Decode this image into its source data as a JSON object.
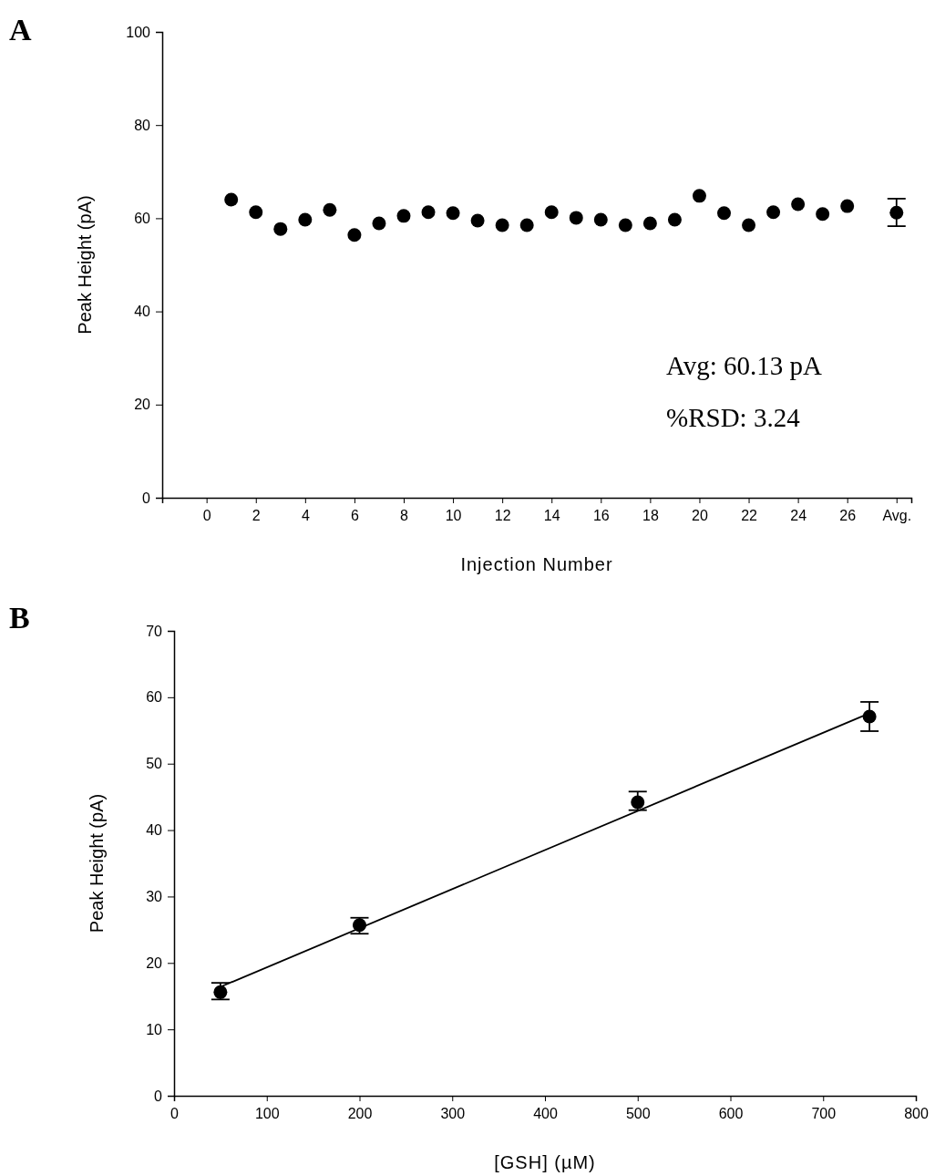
{
  "chart_data": [
    {
      "type": "scatter",
      "title": "A",
      "xlabel": "Injection Number",
      "ylabel": "Peak Height (pA)",
      "xlim": [
        -1.8,
        28.6
      ],
      "ylim": [
        0,
        100
      ],
      "xticks": [
        0,
        2,
        4,
        6,
        8,
        10,
        12,
        14,
        16,
        18,
        20,
        22,
        24,
        26,
        {
          "value": 28,
          "label": "Avg."
        }
      ],
      "yticks": [
        0,
        20,
        40,
        60,
        80,
        100
      ],
      "marker": "circle",
      "series": [
        {
          "color": "#000000",
          "x": [
            1,
            2,
            3,
            4,
            5,
            6,
            7,
            8,
            9,
            10,
            11,
            12,
            13,
            14,
            15,
            16,
            17,
            18,
            19,
            20,
            21,
            22,
            23,
            24,
            25,
            26
          ],
          "values": [
            64.0,
            61.3,
            57.7,
            59.7,
            61.8,
            56.4,
            58.9,
            60.5,
            61.3,
            61.1,
            59.5,
            58.5,
            58.5,
            61.3,
            60.1,
            59.7,
            58.5,
            58.9,
            59.7,
            64.8,
            61.1,
            58.5,
            61.3,
            63.0,
            60.9,
            62.6
          ]
        },
        {
          "color": "#000000",
          "x": [
            28
          ],
          "values": [
            61.2
          ],
          "errors": [
            [
              58.3,
              64.2
            ]
          ]
        }
      ],
      "annotations": [
        "Avg: 60.13 pA",
        "%RSD: 3.24"
      ]
    },
    {
      "type": "scatter",
      "title": "B",
      "xlabel": "[GSH] (µM)",
      "ylabel": "Peak Height (pA)",
      "xlim": [
        0,
        800
      ],
      "ylim": [
        0,
        70
      ],
      "xticks": [
        0,
        100,
        200,
        300,
        400,
        500,
        600,
        700,
        800
      ],
      "yticks": [
        0,
        10,
        20,
        30,
        40,
        50,
        60,
        70
      ],
      "marker": "circle",
      "series": [
        {
          "color": "#000000",
          "x": [
            50,
            200,
            500,
            750
          ],
          "values": [
            15.6,
            25.7,
            44.2,
            57.1
          ],
          "errors": [
            [
              14.5,
              17.0
            ],
            [
              24.4,
              26.8
            ],
            [
              43.0,
              45.8
            ],
            [
              54.9,
              59.3
            ]
          ]
        },
        {
          "type": "line",
          "marker": "none",
          "color": "#000000",
          "x": [
            50,
            750
          ],
          "values": [
            16.4,
            57.6
          ]
        }
      ]
    }
  ]
}
